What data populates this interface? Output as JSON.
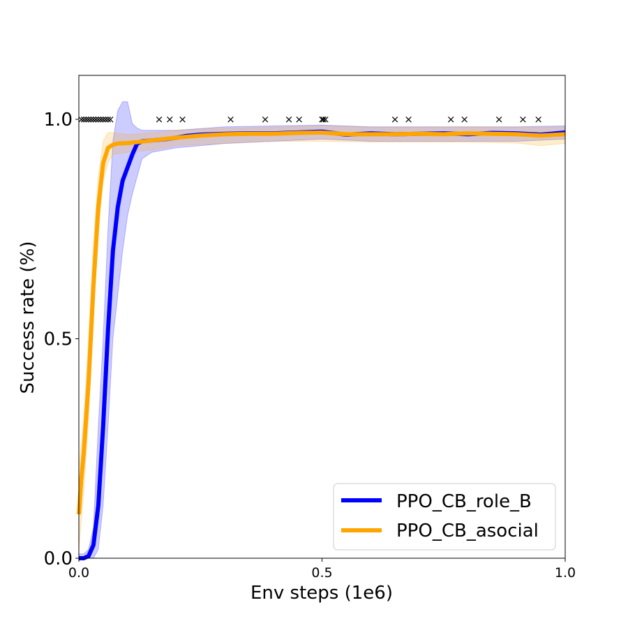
{
  "chart_data": {
    "type": "line",
    "xlabel": "Env steps (1e6)",
    "ylabel": "Success rate (%)",
    "xlim": [
      0.0,
      1.0
    ],
    "ylim": [
      0.0,
      1.1
    ],
    "xticks": [
      {
        "value": 0.0,
        "label": "0.0"
      },
      {
        "value": 0.5,
        "label": "0.5"
      },
      {
        "value": 1.0,
        "label": "1.0"
      }
    ],
    "yticks": [
      {
        "value": 0.0,
        "label": "0.0"
      },
      {
        "value": 0.5,
        "label": "0.5"
      },
      {
        "value": 1.0,
        "label": "1.0"
      }
    ],
    "grid": false,
    "legend_position": "bottom-right",
    "series": [
      {
        "name": "PPO_CB_role_B",
        "color": "#0000ff",
        "points": [
          [
            0.0,
            0.0
          ],
          [
            0.01,
            0.0
          ],
          [
            0.02,
            0.005
          ],
          [
            0.03,
            0.03
          ],
          [
            0.04,
            0.12
          ],
          [
            0.05,
            0.3
          ],
          [
            0.06,
            0.52
          ],
          [
            0.07,
            0.7
          ],
          [
            0.08,
            0.8
          ],
          [
            0.09,
            0.86
          ],
          [
            0.1,
            0.89
          ],
          [
            0.11,
            0.92
          ],
          [
            0.12,
            0.945
          ],
          [
            0.13,
            0.95
          ],
          [
            0.15,
            0.952
          ],
          [
            0.18,
            0.955
          ],
          [
            0.2,
            0.958
          ],
          [
            0.22,
            0.962
          ],
          [
            0.25,
            0.965
          ],
          [
            0.3,
            0.967
          ],
          [
            0.35,
            0.968
          ],
          [
            0.4,
            0.968
          ],
          [
            0.45,
            0.97
          ],
          [
            0.5,
            0.972
          ],
          [
            0.55,
            0.965
          ],
          [
            0.6,
            0.968
          ],
          [
            0.65,
            0.966
          ],
          [
            0.7,
            0.967
          ],
          [
            0.75,
            0.968
          ],
          [
            0.8,
            0.966
          ],
          [
            0.85,
            0.969
          ],
          [
            0.9,
            0.968
          ],
          [
            0.95,
            0.965
          ],
          [
            1.0,
            0.97
          ]
        ],
        "band": [
          [
            0.0,
            0.0,
            0.01
          ],
          [
            0.01,
            0.0,
            0.01
          ],
          [
            0.02,
            0.0,
            0.02
          ],
          [
            0.03,
            0.0,
            0.07
          ],
          [
            0.04,
            0.02,
            0.3
          ],
          [
            0.05,
            0.12,
            0.5
          ],
          [
            0.06,
            0.3,
            0.75
          ],
          [
            0.07,
            0.5,
            0.95
          ],
          [
            0.08,
            0.6,
            1.02
          ],
          [
            0.09,
            0.7,
            1.04
          ],
          [
            0.1,
            0.78,
            1.04
          ],
          [
            0.11,
            0.83,
            0.99
          ],
          [
            0.12,
            0.87,
            0.98
          ],
          [
            0.13,
            0.91,
            0.975
          ],
          [
            0.15,
            0.925,
            0.975
          ],
          [
            0.2,
            0.935,
            0.975
          ],
          [
            0.3,
            0.945,
            0.983
          ],
          [
            0.4,
            0.95,
            0.985
          ],
          [
            0.5,
            0.955,
            0.987
          ],
          [
            0.6,
            0.95,
            0.983
          ],
          [
            0.7,
            0.95,
            0.983
          ],
          [
            0.8,
            0.95,
            0.983
          ],
          [
            0.9,
            0.95,
            0.983
          ],
          [
            1.0,
            0.955,
            0.985
          ]
        ]
      },
      {
        "name": "PPO_CB_asocial",
        "color": "#ffa500",
        "points": [
          [
            0.0,
            0.1
          ],
          [
            0.005,
            0.18
          ],
          [
            0.01,
            0.24
          ],
          [
            0.02,
            0.4
          ],
          [
            0.03,
            0.62
          ],
          [
            0.04,
            0.8
          ],
          [
            0.05,
            0.9
          ],
          [
            0.06,
            0.935
          ],
          [
            0.07,
            0.942
          ],
          [
            0.08,
            0.945
          ],
          [
            0.1,
            0.946
          ],
          [
            0.12,
            0.948
          ],
          [
            0.15,
            0.952
          ],
          [
            0.2,
            0.958
          ],
          [
            0.25,
            0.963
          ],
          [
            0.3,
            0.966
          ],
          [
            0.35,
            0.967
          ],
          [
            0.4,
            0.967
          ],
          [
            0.45,
            0.969
          ],
          [
            0.5,
            0.97
          ],
          [
            0.55,
            0.966
          ],
          [
            0.6,
            0.966
          ],
          [
            0.65,
            0.966
          ],
          [
            0.7,
            0.967
          ],
          [
            0.75,
            0.966
          ],
          [
            0.8,
            0.968
          ],
          [
            0.85,
            0.967
          ],
          [
            0.9,
            0.966
          ],
          [
            0.95,
            0.963
          ],
          [
            1.0,
            0.966
          ]
        ],
        "band": [
          [
            0.0,
            0.02,
            0.2
          ],
          [
            0.01,
            0.15,
            0.32
          ],
          [
            0.02,
            0.32,
            0.5
          ],
          [
            0.03,
            0.55,
            0.72
          ],
          [
            0.04,
            0.74,
            0.87
          ],
          [
            0.05,
            0.86,
            0.95
          ],
          [
            0.06,
            0.9,
            0.97
          ],
          [
            0.07,
            0.92,
            0.97
          ],
          [
            0.1,
            0.925,
            0.965
          ],
          [
            0.15,
            0.93,
            0.97
          ],
          [
            0.2,
            0.94,
            0.975
          ],
          [
            0.3,
            0.945,
            0.98
          ],
          [
            0.4,
            0.95,
            0.982
          ],
          [
            0.5,
            0.95,
            0.985
          ],
          [
            0.6,
            0.948,
            0.982
          ],
          [
            0.7,
            0.948,
            0.982
          ],
          [
            0.8,
            0.948,
            0.983
          ],
          [
            0.9,
            0.946,
            0.982
          ],
          [
            0.95,
            0.94,
            0.982
          ],
          [
            1.0,
            0.945,
            0.982
          ]
        ]
      }
    ],
    "markers": {
      "y": 1.0,
      "symbol": "×",
      "x": [
        0.005,
        0.01,
        0.015,
        0.02,
        0.025,
        0.03,
        0.035,
        0.04,
        0.045,
        0.05,
        0.055,
        0.06,
        0.065,
        0.165,
        0.187,
        0.213,
        0.312,
        0.383,
        0.432,
        0.453,
        0.5,
        0.503,
        0.507,
        0.65,
        0.678,
        0.765,
        0.793,
        0.864,
        0.913,
        0.945
      ]
    }
  }
}
